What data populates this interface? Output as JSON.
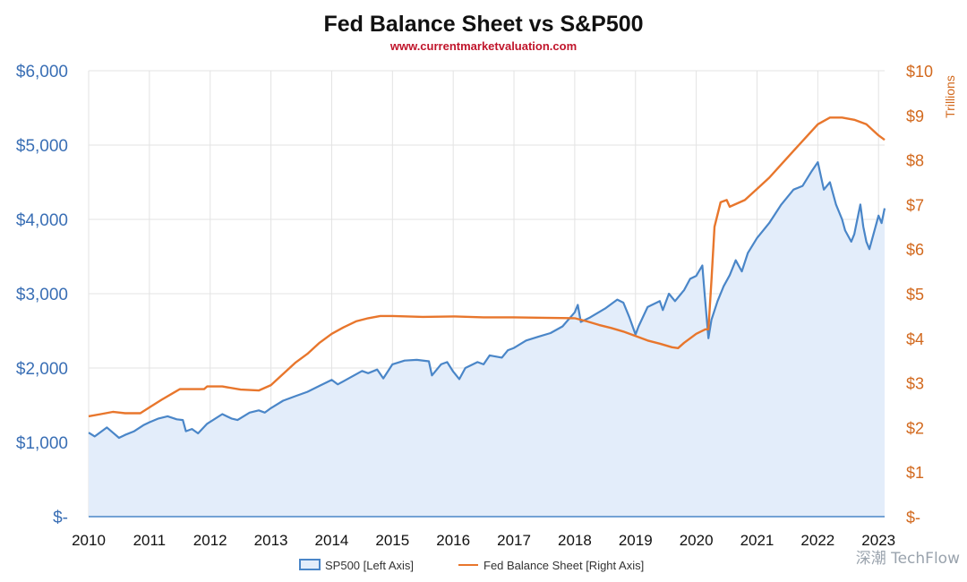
{
  "chart_data": {
    "type": "line",
    "title": "Fed Balance Sheet vs S&P500",
    "subtitle": "www.currentmarketvaluation.com",
    "watermark": "深潮 TechFlow",
    "y_left": {
      "label": "",
      "ylim": [
        0,
        6000
      ],
      "ticks": [
        0,
        1000,
        2000,
        3000,
        4000,
        5000,
        6000
      ],
      "tick_labels": [
        "$-",
        "$1,000",
        "$2,000",
        "$3,000",
        "$4,000",
        "$5,000",
        "$6,000"
      ],
      "color": "#3a6fb5"
    },
    "y_right": {
      "label": "Trillions",
      "ylim": [
        0,
        10
      ],
      "ticks": [
        0,
        1,
        2,
        3,
        4,
        5,
        6,
        7,
        8,
        9,
        10
      ],
      "tick_labels": [
        "$-",
        "$1",
        "$2",
        "$3",
        "$4",
        "$5",
        "$6",
        "$7",
        "$8",
        "$9",
        "$10"
      ],
      "color": "#d2691e"
    },
    "x": {
      "xlim": [
        2010,
        2023.1
      ],
      "ticks": [
        2010,
        2011,
        2012,
        2013,
        2014,
        2015,
        2016,
        2017,
        2018,
        2019,
        2020,
        2021,
        2022,
        2023
      ],
      "tick_labels": [
        "2010",
        "2011",
        "2012",
        "2013",
        "2014",
        "2015",
        "2016",
        "2017",
        "2018",
        "2019",
        "2020",
        "2021",
        "2022",
        "2023"
      ]
    },
    "grid": true,
    "legend_position": "bottom",
    "series": [
      {
        "name": "SP500 [Left Axis]",
        "axis": "left",
        "style": "area",
        "color": "#4a86c8",
        "fill": "#e3edfa",
        "points": [
          [
            2010.0,
            1130
          ],
          [
            2010.1,
            1080
          ],
          [
            2010.3,
            1200
          ],
          [
            2010.4,
            1130
          ],
          [
            2010.5,
            1060
          ],
          [
            2010.6,
            1100
          ],
          [
            2010.75,
            1150
          ],
          [
            2010.9,
            1230
          ],
          [
            2011.0,
            1270
          ],
          [
            2011.15,
            1320
          ],
          [
            2011.3,
            1350
          ],
          [
            2011.45,
            1310
          ],
          [
            2011.55,
            1300
          ],
          [
            2011.6,
            1150
          ],
          [
            2011.7,
            1180
          ],
          [
            2011.8,
            1120
          ],
          [
            2011.95,
            1250
          ],
          [
            2012.2,
            1380
          ],
          [
            2012.35,
            1320
          ],
          [
            2012.45,
            1300
          ],
          [
            2012.65,
            1400
          ],
          [
            2012.8,
            1430
          ],
          [
            2012.9,
            1400
          ],
          [
            2013.0,
            1460
          ],
          [
            2013.2,
            1560
          ],
          [
            2013.4,
            1620
          ],
          [
            2013.6,
            1680
          ],
          [
            2013.8,
            1760
          ],
          [
            2014.0,
            1840
          ],
          [
            2014.1,
            1780
          ],
          [
            2014.3,
            1870
          ],
          [
            2014.5,
            1960
          ],
          [
            2014.6,
            1930
          ],
          [
            2014.75,
            1980
          ],
          [
            2014.85,
            1860
          ],
          [
            2015.0,
            2050
          ],
          [
            2015.2,
            2100
          ],
          [
            2015.4,
            2110
          ],
          [
            2015.6,
            2090
          ],
          [
            2015.65,
            1900
          ],
          [
            2015.8,
            2050
          ],
          [
            2015.9,
            2080
          ],
          [
            2016.0,
            1950
          ],
          [
            2016.1,
            1850
          ],
          [
            2016.2,
            2000
          ],
          [
            2016.4,
            2080
          ],
          [
            2016.5,
            2050
          ],
          [
            2016.6,
            2170
          ],
          [
            2016.8,
            2140
          ],
          [
            2016.9,
            2240
          ],
          [
            2017.0,
            2270
          ],
          [
            2017.2,
            2370
          ],
          [
            2017.4,
            2420
          ],
          [
            2017.6,
            2470
          ],
          [
            2017.8,
            2560
          ],
          [
            2018.0,
            2750
          ],
          [
            2018.05,
            2850
          ],
          [
            2018.1,
            2620
          ],
          [
            2018.25,
            2680
          ],
          [
            2018.5,
            2800
          ],
          [
            2018.7,
            2920
          ],
          [
            2018.8,
            2880
          ],
          [
            2018.9,
            2680
          ],
          [
            2019.0,
            2450
          ],
          [
            2019.05,
            2560
          ],
          [
            2019.2,
            2820
          ],
          [
            2019.4,
            2900
          ],
          [
            2019.45,
            2780
          ],
          [
            2019.55,
            3000
          ],
          [
            2019.65,
            2900
          ],
          [
            2019.8,
            3050
          ],
          [
            2019.9,
            3200
          ],
          [
            2020.0,
            3240
          ],
          [
            2020.1,
            3380
          ],
          [
            2020.14,
            2980
          ],
          [
            2020.2,
            2400
          ],
          [
            2020.25,
            2650
          ],
          [
            2020.35,
            2900
          ],
          [
            2020.45,
            3100
          ],
          [
            2020.55,
            3250
          ],
          [
            2020.65,
            3450
          ],
          [
            2020.75,
            3300
          ],
          [
            2020.85,
            3550
          ],
          [
            2021.0,
            3750
          ],
          [
            2021.2,
            3950
          ],
          [
            2021.4,
            4200
          ],
          [
            2021.6,
            4400
          ],
          [
            2021.75,
            4450
          ],
          [
            2021.9,
            4650
          ],
          [
            2022.0,
            4770
          ],
          [
            2022.1,
            4400
          ],
          [
            2022.2,
            4500
          ],
          [
            2022.3,
            4200
          ],
          [
            2022.4,
            4000
          ],
          [
            2022.45,
            3850
          ],
          [
            2022.55,
            3700
          ],
          [
            2022.6,
            3800
          ],
          [
            2022.7,
            4200
          ],
          [
            2022.75,
            3900
          ],
          [
            2022.8,
            3700
          ],
          [
            2022.85,
            3600
          ],
          [
            2022.95,
            3900
          ],
          [
            2023.0,
            4050
          ],
          [
            2023.05,
            3950
          ],
          [
            2023.1,
            4150
          ]
        ]
      },
      {
        "name": "Fed Balance Sheet [Right Axis]",
        "axis": "right",
        "style": "line",
        "color": "#e8762c",
        "points": [
          [
            2010.0,
            2.25
          ],
          [
            2010.2,
            2.3
          ],
          [
            2010.4,
            2.35
          ],
          [
            2010.6,
            2.32
          ],
          [
            2010.85,
            2.32
          ],
          [
            2011.0,
            2.45
          ],
          [
            2011.2,
            2.62
          ],
          [
            2011.4,
            2.78
          ],
          [
            2011.5,
            2.86
          ],
          [
            2011.7,
            2.86
          ],
          [
            2011.9,
            2.86
          ],
          [
            2011.95,
            2.92
          ],
          [
            2012.2,
            2.92
          ],
          [
            2012.5,
            2.85
          ],
          [
            2012.8,
            2.83
          ],
          [
            2013.0,
            2.95
          ],
          [
            2013.2,
            3.2
          ],
          [
            2013.4,
            3.45
          ],
          [
            2013.6,
            3.65
          ],
          [
            2013.8,
            3.9
          ],
          [
            2014.0,
            4.1
          ],
          [
            2014.2,
            4.25
          ],
          [
            2014.4,
            4.38
          ],
          [
            2014.6,
            4.45
          ],
          [
            2014.8,
            4.5
          ],
          [
            2015.0,
            4.5
          ],
          [
            2015.5,
            4.48
          ],
          [
            2016.0,
            4.49
          ],
          [
            2016.5,
            4.47
          ],
          [
            2017.0,
            4.47
          ],
          [
            2017.5,
            4.46
          ],
          [
            2018.0,
            4.45
          ],
          [
            2018.2,
            4.38
          ],
          [
            2018.4,
            4.3
          ],
          [
            2018.6,
            4.23
          ],
          [
            2018.8,
            4.15
          ],
          [
            2019.0,
            4.05
          ],
          [
            2019.2,
            3.95
          ],
          [
            2019.4,
            3.88
          ],
          [
            2019.6,
            3.8
          ],
          [
            2019.7,
            3.78
          ],
          [
            2019.8,
            3.9
          ],
          [
            2020.0,
            4.1
          ],
          [
            2020.15,
            4.2
          ],
          [
            2020.2,
            4.2
          ],
          [
            2020.25,
            5.3
          ],
          [
            2020.3,
            6.5
          ],
          [
            2020.4,
            7.05
          ],
          [
            2020.5,
            7.1
          ],
          [
            2020.55,
            6.95
          ],
          [
            2020.8,
            7.1
          ],
          [
            2021.0,
            7.35
          ],
          [
            2021.2,
            7.6
          ],
          [
            2021.4,
            7.9
          ],
          [
            2021.6,
            8.2
          ],
          [
            2021.8,
            8.5
          ],
          [
            2022.0,
            8.8
          ],
          [
            2022.2,
            8.95
          ],
          [
            2022.4,
            8.95
          ],
          [
            2022.6,
            8.9
          ],
          [
            2022.8,
            8.8
          ],
          [
            2023.0,
            8.55
          ],
          [
            2023.1,
            8.45
          ]
        ]
      }
    ]
  }
}
